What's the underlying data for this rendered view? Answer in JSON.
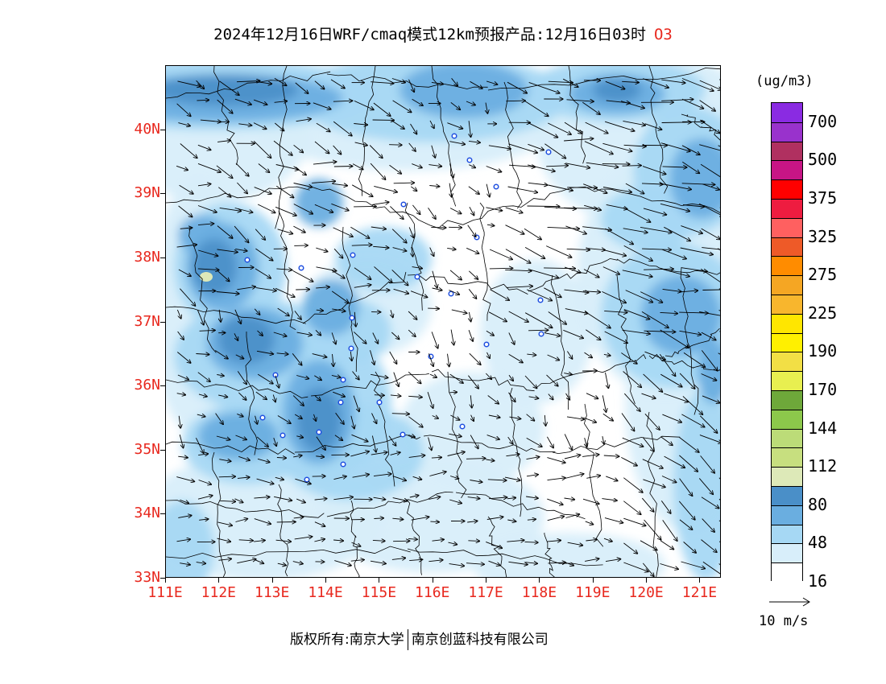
{
  "title": {
    "text": "2024年12月16日WRF/cmaq模式12km预报产品:12月16日03时",
    "species": "O3"
  },
  "map": {
    "y_labels": [
      "40N",
      "39N",
      "38N",
      "37N",
      "36N",
      "35N",
      "34N",
      "33N"
    ],
    "x_labels": [
      "111E",
      "112E",
      "113E",
      "114E",
      "115E",
      "116E",
      "117E",
      "118E",
      "119E",
      "120E",
      "121E"
    ],
    "lon_range": [
      111,
      121.4
    ],
    "lat_range": [
      33,
      41
    ]
  },
  "colorbar": {
    "unit": "(ug/m3)",
    "labels": [
      "700",
      "500",
      "375",
      "325",
      "275",
      "225",
      "190",
      "170",
      "144",
      "112",
      "80",
      "48",
      "16"
    ],
    "colors": [
      "#8a2be2",
      "#9932cc",
      "#b03060",
      "#c71585",
      "#ff0000",
      "#ee1c40",
      "#ff6060",
      "#ee5a28",
      "#ff8c00",
      "#f5a623",
      "#f8b62d",
      "#ffe600",
      "#fff000",
      "#f2df45",
      "#e8ef50",
      "#6ea83a",
      "#8cc84b",
      "#bcdc78",
      "#c7df7f",
      "#dde9b8",
      "#4a8fc8",
      "#6aaee0",
      "#a6d8f4",
      "#d8eefa",
      "#ffffff"
    ]
  },
  "legend": {
    "ref_vector": "10 m/s"
  },
  "footer": {
    "copyright_left": "版权所有:南京大学",
    "copyright_right": "南京创蓝科技有限公司"
  }
}
